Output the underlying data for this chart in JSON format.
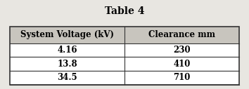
{
  "title": "Table 4",
  "col_headers": [
    "System Voltage (kV)",
    "Clearance mm"
  ],
  "rows": [
    [
      "4.16",
      "230"
    ],
    [
      "13.8",
      "410"
    ],
    [
      "34.5",
      "710"
    ]
  ],
  "bg_color": "#e8e6e1",
  "header_bg": "#c8c5be",
  "cell_bg": "#ffffff",
  "border_color": "#333333",
  "title_fontsize": 10,
  "header_fontsize": 8.5,
  "cell_fontsize": 8.5,
  "fig_width": 3.54,
  "fig_height": 1.27,
  "dpi": 100
}
